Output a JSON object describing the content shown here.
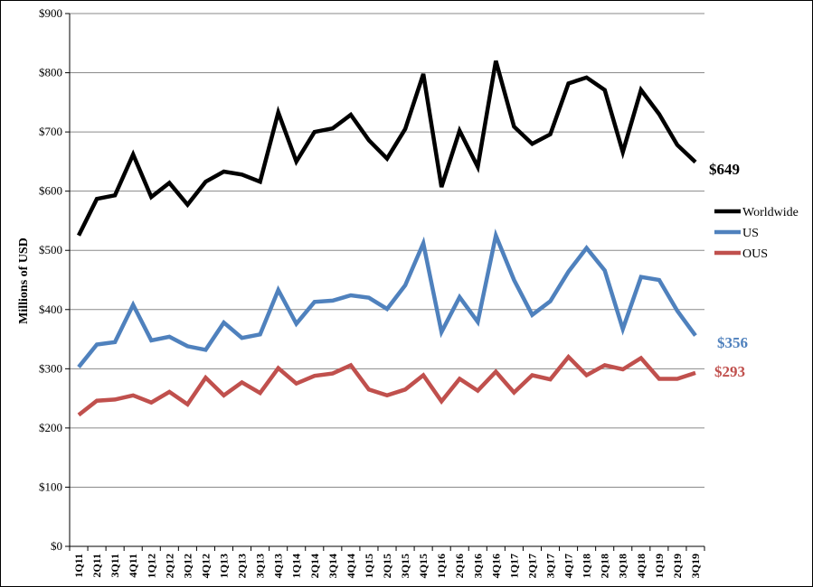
{
  "chart_data": {
    "type": "line",
    "title": "",
    "xlabel": "",
    "ylabel": "Millions of USD",
    "ylim": [
      0,
      900
    ],
    "y_ticks": [
      "$0",
      "$100",
      "$200",
      "$300",
      "$400",
      "$500",
      "$600",
      "$700",
      "$800",
      "$900"
    ],
    "grid": "horizontal",
    "legend_position": "right",
    "categories": [
      "1Q11",
      "2Q11",
      "3Q11",
      "4Q11",
      "1Q12",
      "2Q12",
      "3Q12",
      "4Q12",
      "1Q13",
      "2Q13",
      "3Q13",
      "4Q13",
      "1Q14",
      "2Q14",
      "3Q14",
      "4Q14",
      "1Q15",
      "2Q15",
      "3Q15",
      "4Q15",
      "1Q16",
      "2Q16",
      "3Q16",
      "4Q16",
      "1Q17",
      "2Q17",
      "3Q17",
      "4Q17",
      "1Q18",
      "2Q18",
      "3Q18",
      "4Q18",
      "1Q19",
      "2Q19",
      "3Q19"
    ],
    "series": [
      {
        "name": "Worldwide",
        "color": "#000000",
        "values": [
          525,
          587,
          593,
          662,
          590,
          614,
          577,
          616,
          633,
          628,
          616,
          733,
          650,
          700,
          706,
          729,
          686,
          655,
          705,
          798,
          607,
          702,
          641,
          820,
          709,
          680,
          696,
          782,
          792,
          771,
          666,
          771,
          730,
          678,
          649
        ],
        "end_label": "$649"
      },
      {
        "name": "US",
        "color": "#4F81BD",
        "values": [
          303,
          341,
          345,
          408,
          348,
          354,
          338,
          332,
          378,
          352,
          358,
          433,
          376,
          413,
          415,
          424,
          420,
          401,
          441,
          512,
          362,
          421,
          379,
          525,
          450,
          391,
          414,
          464,
          504,
          466,
          367,
          455,
          450,
          398,
          356
        ],
        "end_label": "$356"
      },
      {
        "name": "OUS",
        "color": "#C0504D",
        "values": [
          222,
          246,
          248,
          255,
          243,
          261,
          240,
          285,
          255,
          277,
          259,
          301,
          275,
          288,
          292,
          306,
          265,
          255,
          265,
          289,
          245,
          283,
          263,
          295,
          260,
          289,
          282,
          320,
          289,
          306,
          299,
          318,
          283,
          283,
          293
        ],
        "end_label": "$293"
      }
    ]
  }
}
